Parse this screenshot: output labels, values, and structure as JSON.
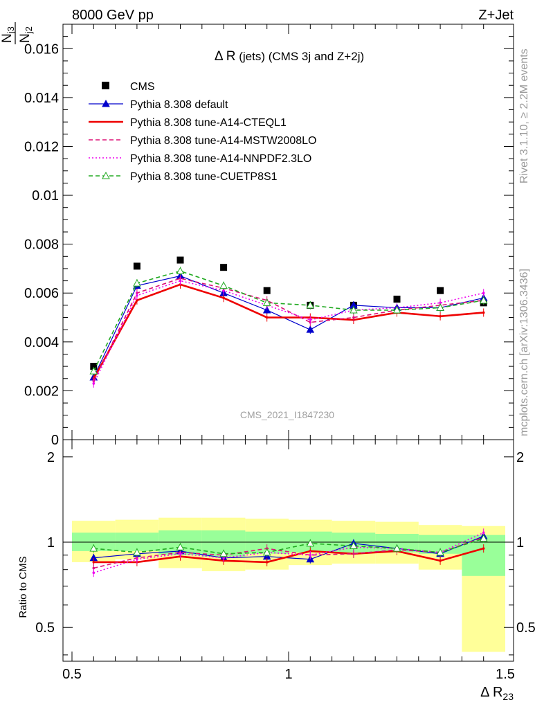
{
  "header": {
    "left": "8000 GeV pp",
    "right": "Z+Jet",
    "side_top": "Rivet 3.1.10, ≥ 2.2M events",
    "side_bottom": "mcplots.cern.ch [arXiv:1306.3436]"
  },
  "chart_data": [
    {
      "type": "line",
      "title_symbol": "Δ R",
      "title_rest": " (jets) (CMS 3j and Z+2j)",
      "watermark": "CMS_2021_I1847230",
      "ylabel_num": "N",
      "ylabel_num_sub": "j3",
      "ylabel_den": "N",
      "ylabel_den_sub": "j2",
      "xlim": [
        0.5,
        1.5
      ],
      "ylim": [
        0,
        0.017
      ],
      "yticks": [
        0,
        0.002,
        0.004,
        0.006,
        0.008,
        0.01,
        0.012,
        0.014,
        0.016
      ],
      "ytick_labels": [
        "0",
        "0.002",
        "0.004",
        "0.006",
        "0.008",
        "0.01",
        "0.012",
        "0.014",
        "0.016"
      ],
      "legend_position": "top-left",
      "x": [
        0.55,
        0.65,
        0.75,
        0.85,
        0.95,
        1.05,
        1.15,
        1.25,
        1.35,
        1.45
      ],
      "series": [
        {
          "name": "CMS",
          "color": "#000000",
          "style": "marker-square",
          "values": [
            0.003,
            0.0071,
            0.00735,
            0.00705,
            0.0061,
            0.0055,
            0.0055,
            0.00575,
            0.0061,
            0.0056
          ]
        },
        {
          "name": "Pythia 8.308 default",
          "color": "#0000cc",
          "style": "solid-thin-triangle",
          "values": [
            0.00255,
            0.0063,
            0.0067,
            0.006,
            0.0053,
            0.0045,
            0.0055,
            0.0054,
            0.0054,
            0.0058
          ]
        },
        {
          "name": "Pythia 8.308 tune-A14-CTEQL1",
          "color": "#ee0000",
          "style": "solid-thick",
          "values": [
            0.0025,
            0.0057,
            0.00635,
            0.0058,
            0.005,
            0.005,
            0.0049,
            0.0052,
            0.00505,
            0.0052
          ]
        },
        {
          "name": "Pythia 8.308 tune-A14-MSTW2008LO",
          "color": "#dd1177",
          "style": "dashed",
          "values": [
            0.0024,
            0.006,
            0.0066,
            0.0062,
            0.0057,
            0.0048,
            0.005,
            0.0053,
            0.0055,
            0.0057
          ]
        },
        {
          "name": "Pythia 8.308 tune-A14-NNPDF2.3LO",
          "color": "#ee00ee",
          "style": "dotted",
          "values": [
            0.0023,
            0.0059,
            0.0065,
            0.0061,
            0.0055,
            0.0049,
            0.0053,
            0.0054,
            0.0056,
            0.006
          ]
        },
        {
          "name": "Pythia 8.308 tune-CUETP8S1",
          "color": "#22aa22",
          "style": "dashed-open-triangle",
          "values": [
            0.0028,
            0.0064,
            0.0069,
            0.0063,
            0.0056,
            0.0055,
            0.0053,
            0.0053,
            0.0054,
            0.0057
          ]
        }
      ]
    },
    {
      "type": "line",
      "ylabel": "Ratio to CMS",
      "xlabel_symbol": "Δ R",
      "xlabel_sub": "23",
      "xlim": [
        0.5,
        1.5
      ],
      "ylim": [
        0.38,
        2.3
      ],
      "yscale": "log",
      "yticks": [
        0.5,
        1,
        2
      ],
      "ytick_labels": [
        "0.5",
        "1",
        "2"
      ],
      "xticks": [
        0.5,
        1,
        1.5
      ],
      "xtick_labels": [
        "0.5",
        "1",
        "1.5"
      ],
      "bands": {
        "x_edges": [
          0.5,
          0.6,
          0.7,
          0.8,
          0.9,
          1.0,
          1.1,
          1.2,
          1.3,
          1.4,
          1.5
        ],
        "outer_yellow": [
          [
            0.85,
            1.19
          ],
          [
            0.87,
            1.2
          ],
          [
            0.81,
            1.22
          ],
          [
            0.79,
            1.22
          ],
          [
            0.8,
            1.21
          ],
          [
            0.83,
            1.2
          ],
          [
            0.84,
            1.19
          ],
          [
            0.84,
            1.18
          ],
          [
            0.8,
            1.15
          ],
          [
            0.41,
            1.14
          ]
        ],
        "inner_green": [
          [
            0.93,
            1.08
          ],
          [
            0.93,
            1.08
          ],
          [
            0.9,
            1.1
          ],
          [
            0.89,
            1.1
          ],
          [
            0.91,
            1.09
          ],
          [
            0.92,
            1.09
          ],
          [
            0.92,
            1.08
          ],
          [
            0.92,
            1.07
          ],
          [
            0.91,
            1.06
          ],
          [
            0.76,
            1.06
          ]
        ]
      },
      "x": [
        0.55,
        0.65,
        0.75,
        0.85,
        0.95,
        1.05,
        1.15,
        1.25,
        1.35,
        1.45
      ],
      "series": [
        {
          "name": "Pythia 8.308 default",
          "color": "#0000cc",
          "style": "solid-thin-triangle",
          "values": [
            0.88,
            0.91,
            0.93,
            0.88,
            0.89,
            0.87,
            0.99,
            0.95,
            0.91,
            1.05
          ]
        },
        {
          "name": "Pythia 8.308 tune-A14-CTEQL1",
          "color": "#ee0000",
          "style": "solid-thick",
          "values": [
            0.85,
            0.85,
            0.89,
            0.86,
            0.85,
            0.93,
            0.91,
            0.93,
            0.86,
            0.95
          ]
        },
        {
          "name": "Pythia 8.308 tune-A14-MSTW2008LO",
          "color": "#dd1177",
          "style": "dashed",
          "values": [
            0.81,
            0.88,
            0.92,
            0.9,
            0.95,
            0.9,
            0.91,
            0.94,
            0.92,
            1.04
          ]
        },
        {
          "name": "Pythia 8.308 tune-A14-NNPDF2.3LO",
          "color": "#ee00ee",
          "style": "dotted",
          "values": [
            0.78,
            0.87,
            0.91,
            0.88,
            0.92,
            0.9,
            0.96,
            0.95,
            0.92,
            1.08
          ]
        },
        {
          "name": "Pythia 8.308 tune-CUETP8S1",
          "color": "#22aa22",
          "style": "dashed-open-triangle",
          "values": [
            0.95,
            0.92,
            0.96,
            0.91,
            0.92,
            0.99,
            0.97,
            0.95,
            0.92,
            1.03
          ]
        }
      ]
    }
  ]
}
